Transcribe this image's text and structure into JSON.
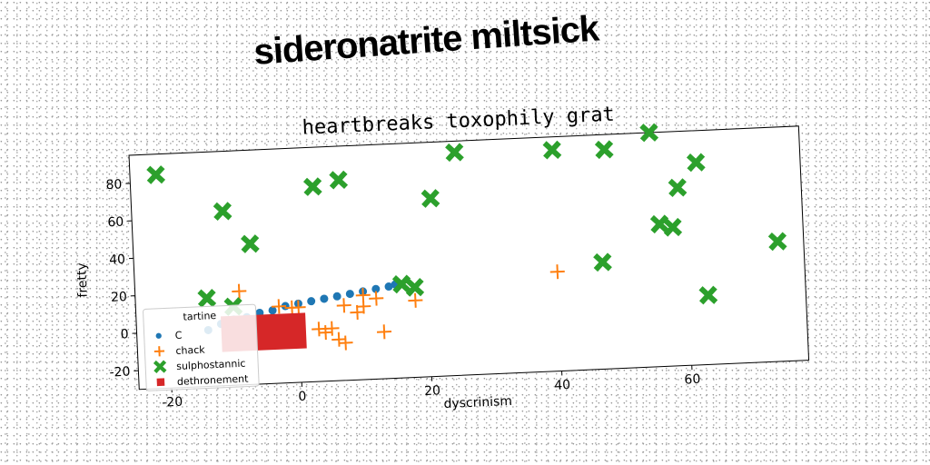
{
  "suptitle": "sideronatrite miltsick",
  "chart_data": {
    "type": "scatter",
    "title": "heartbreaks toxophily grat",
    "xlabel": "dyscrinism",
    "ylabel": "fretty",
    "xlim": [
      -25,
      78
    ],
    "ylim": [
      -30,
      95
    ],
    "xticks": [
      -20,
      0,
      20,
      40,
      60
    ],
    "yticks": [
      -20,
      0,
      20,
      40,
      60,
      80
    ],
    "legend": {
      "title": "tartine",
      "placement": "lower-left"
    },
    "series": [
      {
        "name": "C",
        "marker": "dot",
        "color": "#1f77b4",
        "points": [
          [
            -14,
            0
          ],
          [
            -12,
            3
          ],
          [
            -10,
            5
          ],
          [
            -8,
            6
          ],
          [
            -6,
            8
          ],
          [
            -4,
            9
          ],
          [
            -2,
            11
          ],
          [
            0,
            12
          ],
          [
            2,
            13
          ],
          [
            4,
            14
          ],
          [
            6,
            15
          ],
          [
            8,
            16
          ],
          [
            10,
            17
          ],
          [
            12,
            18
          ],
          [
            14,
            19
          ],
          [
            15,
            20
          ]
        ]
      },
      {
        "name": "chack",
        "marker": "plus",
        "color": "#ff7f0e",
        "points": [
          [
            -9,
            20
          ],
          [
            -3,
            11
          ],
          [
            -1,
            10
          ],
          [
            0,
            10
          ],
          [
            3,
            -2
          ],
          [
            4,
            -4
          ],
          [
            5,
            -2
          ],
          [
            6,
            -8
          ],
          [
            7,
            -10
          ],
          [
            7,
            10
          ],
          [
            9,
            6
          ],
          [
            10,
            9
          ],
          [
            10,
            15
          ],
          [
            12,
            13
          ],
          [
            13,
            -5
          ],
          [
            18,
            11
          ],
          [
            40,
            23
          ]
        ]
      },
      {
        "name": "sulphostannic",
        "marker": "x",
        "color": "#2ca02c",
        "points": [
          [
            -21,
            84
          ],
          [
            -11,
            63
          ],
          [
            -7,
            45
          ],
          [
            -14,
            17
          ],
          [
            -10,
            12
          ],
          [
            3,
            74
          ],
          [
            7,
            77
          ],
          [
            16,
            20
          ],
          [
            18,
            18
          ],
          [
            21,
            65
          ],
          [
            25,
            89
          ],
          [
            40,
            88
          ],
          [
            48,
            87
          ],
          [
            47,
            27
          ],
          [
            55,
            95
          ],
          [
            56,
            46
          ],
          [
            58,
            44
          ],
          [
            59,
            65
          ],
          [
            62,
            78
          ],
          [
            63,
            7
          ],
          [
            74,
            34
          ]
        ]
      },
      {
        "name": "dethronement",
        "marker": "square",
        "color": "#d62728",
        "rect": {
          "x": [
            -12,
            1
          ],
          "y": [
            -12,
            7
          ]
        }
      }
    ]
  }
}
